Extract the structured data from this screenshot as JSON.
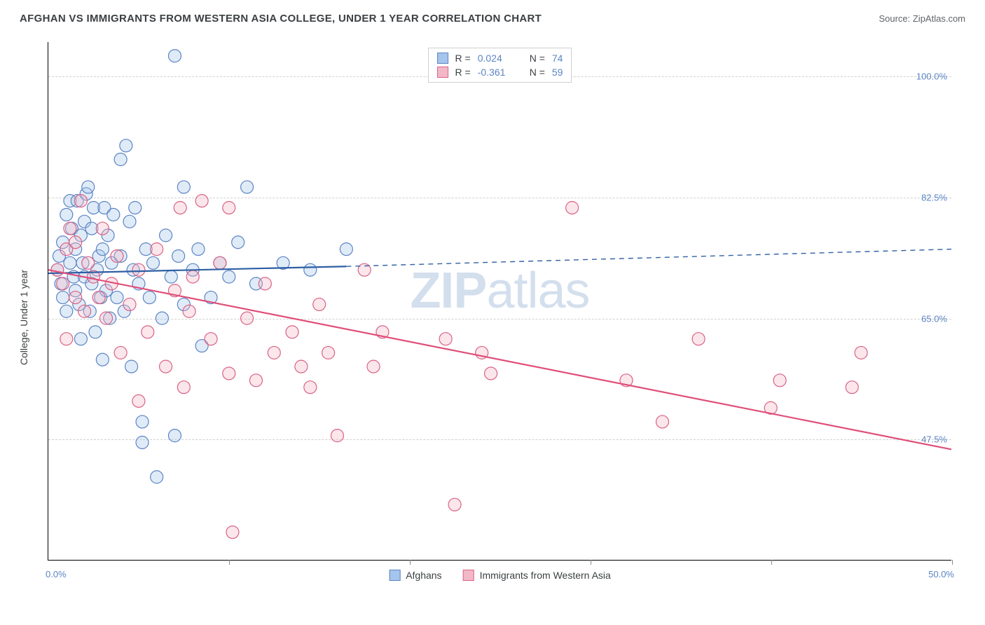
{
  "header": {
    "title": "AFGHAN VS IMMIGRANTS FROM WESTERN ASIA COLLEGE, UNDER 1 YEAR CORRELATION CHART",
    "source": "Source: ZipAtlas.com"
  },
  "chart": {
    "type": "scatter",
    "ylabel": "College, Under 1 year",
    "watermark": "ZIPatlas",
    "background_color": "#ffffff",
    "grid_color": "#d0d0d0",
    "axis_color": "#000000",
    "tick_label_color": "#5b84c4",
    "xlim": [
      0.0,
      50.0
    ],
    "ylim": [
      30.0,
      105.0
    ],
    "xticks": [
      0.0,
      10.0,
      20.0,
      30.0,
      40.0,
      50.0
    ],
    "yticks": [
      47.5,
      65.0,
      82.5,
      100.0
    ],
    "ytick_labels": [
      "47.5%",
      "65.0%",
      "82.5%",
      "100.0%"
    ],
    "xlim_labels": {
      "left": "0.0%",
      "right": "50.0%"
    },
    "marker_radius": 9,
    "marker_fill_opacity": 0.35,
    "series": {
      "afghans": {
        "label": "Afghans",
        "color_fill": "#a6c5ec",
        "color_stroke": "#5b84c4",
        "R": "0.024",
        "N": "74",
        "trend": {
          "solid": {
            "x1": 0.0,
            "y1": 71.5,
            "x2": 16.5,
            "y2": 72.5
          },
          "dashed": {
            "x1": 16.5,
            "y1": 72.5,
            "x2": 50.0,
            "y2": 75.0
          },
          "color": "#2e5fa3",
          "width": 2.2
        },
        "points": [
          [
            0.5,
            72
          ],
          [
            0.6,
            74
          ],
          [
            0.7,
            70
          ],
          [
            0.8,
            76
          ],
          [
            0.8,
            68
          ],
          [
            1.0,
            80
          ],
          [
            1.0,
            66
          ],
          [
            1.2,
            82
          ],
          [
            1.2,
            73
          ],
          [
            1.3,
            78
          ],
          [
            1.4,
            71
          ],
          [
            1.5,
            75
          ],
          [
            1.5,
            69
          ],
          [
            1.6,
            82
          ],
          [
            1.7,
            67
          ],
          [
            1.8,
            77
          ],
          [
            1.8,
            62
          ],
          [
            1.9,
            73
          ],
          [
            2.0,
            79
          ],
          [
            2.0,
            71
          ],
          [
            2.1,
            83
          ],
          [
            2.2,
            84
          ],
          [
            2.3,
            66
          ],
          [
            2.4,
            78
          ],
          [
            2.4,
            70
          ],
          [
            2.5,
            81
          ],
          [
            2.6,
            63
          ],
          [
            2.7,
            72
          ],
          [
            2.8,
            74
          ],
          [
            2.9,
            68
          ],
          [
            3.0,
            75
          ],
          [
            3.0,
            59
          ],
          [
            3.1,
            81
          ],
          [
            3.2,
            69
          ],
          [
            3.3,
            77
          ],
          [
            3.4,
            65
          ],
          [
            3.5,
            73
          ],
          [
            3.6,
            80
          ],
          [
            3.8,
            68
          ],
          [
            4.0,
            74
          ],
          [
            4.0,
            88
          ],
          [
            4.2,
            66
          ],
          [
            4.3,
            90
          ],
          [
            4.5,
            79
          ],
          [
            4.6,
            58
          ],
          [
            4.7,
            72
          ],
          [
            4.8,
            81
          ],
          [
            5.0,
            70
          ],
          [
            5.2,
            47
          ],
          [
            5.2,
            50
          ],
          [
            5.4,
            75
          ],
          [
            5.6,
            68
          ],
          [
            5.8,
            73
          ],
          [
            6.0,
            42
          ],
          [
            6.3,
            65
          ],
          [
            6.5,
            77
          ],
          [
            6.8,
            71
          ],
          [
            7.0,
            48
          ],
          [
            7.0,
            103
          ],
          [
            7.2,
            74
          ],
          [
            7.5,
            67
          ],
          [
            7.5,
            84
          ],
          [
            8.0,
            72
          ],
          [
            8.3,
            75
          ],
          [
            8.5,
            61
          ],
          [
            9.0,
            68
          ],
          [
            9.5,
            73
          ],
          [
            10.0,
            71
          ],
          [
            10.5,
            76
          ],
          [
            11.0,
            84
          ],
          [
            11.5,
            70
          ],
          [
            13.0,
            73
          ],
          [
            14.5,
            72
          ],
          [
            16.5,
            75
          ]
        ]
      },
      "western_asia": {
        "label": "Immigrants from Western Asia",
        "color_fill": "#f3b8c7",
        "color_stroke": "#d96285",
        "R": "-0.361",
        "N": "59",
        "trend": {
          "solid": {
            "x1": 0.0,
            "y1": 72.0,
            "x2": 50.0,
            "y2": 46.0
          },
          "dashed": null,
          "color": "#e04e78",
          "width": 2.2
        },
        "points": [
          [
            0.5,
            72
          ],
          [
            0.8,
            70
          ],
          [
            1.0,
            75
          ],
          [
            1.0,
            62
          ],
          [
            1.2,
            78
          ],
          [
            1.5,
            68
          ],
          [
            1.5,
            76
          ],
          [
            1.8,
            82
          ],
          [
            2.0,
            66
          ],
          [
            2.2,
            73
          ],
          [
            2.5,
            71
          ],
          [
            2.8,
            68
          ],
          [
            3.0,
            78
          ],
          [
            3.2,
            65
          ],
          [
            3.5,
            70
          ],
          [
            3.8,
            74
          ],
          [
            4.0,
            60
          ],
          [
            4.5,
            67
          ],
          [
            5.0,
            53
          ],
          [
            5.0,
            72
          ],
          [
            5.5,
            63
          ],
          [
            6.0,
            75
          ],
          [
            6.5,
            58
          ],
          [
            7.0,
            69
          ],
          [
            7.3,
            81
          ],
          [
            7.5,
            55
          ],
          [
            7.8,
            66
          ],
          [
            8.0,
            71
          ],
          [
            8.5,
            82
          ],
          [
            9.0,
            62
          ],
          [
            9.5,
            73
          ],
          [
            10.0,
            57
          ],
          [
            10.0,
            81
          ],
          [
            10.2,
            34
          ],
          [
            11.0,
            65
          ],
          [
            11.5,
            56
          ],
          [
            12.0,
            70
          ],
          [
            12.5,
            60
          ],
          [
            13.5,
            63
          ],
          [
            14.0,
            58
          ],
          [
            14.5,
            55
          ],
          [
            15.0,
            67
          ],
          [
            15.5,
            60
          ],
          [
            16.0,
            48
          ],
          [
            17.5,
            72
          ],
          [
            18.0,
            58
          ],
          [
            18.5,
            63
          ],
          [
            22.0,
            62
          ],
          [
            22.5,
            38
          ],
          [
            24.0,
            60
          ],
          [
            24.5,
            57
          ],
          [
            29.0,
            81
          ],
          [
            32.0,
            56
          ],
          [
            34.0,
            50
          ],
          [
            36.0,
            62
          ],
          [
            40.5,
            56
          ],
          [
            40.0,
            52
          ],
          [
            44.5,
            55
          ],
          [
            45.0,
            60
          ]
        ]
      }
    },
    "legend_top": [
      {
        "series": "afghans"
      },
      {
        "series": "western_asia"
      }
    ],
    "legend_bottom": [
      "afghans",
      "western_asia"
    ]
  }
}
